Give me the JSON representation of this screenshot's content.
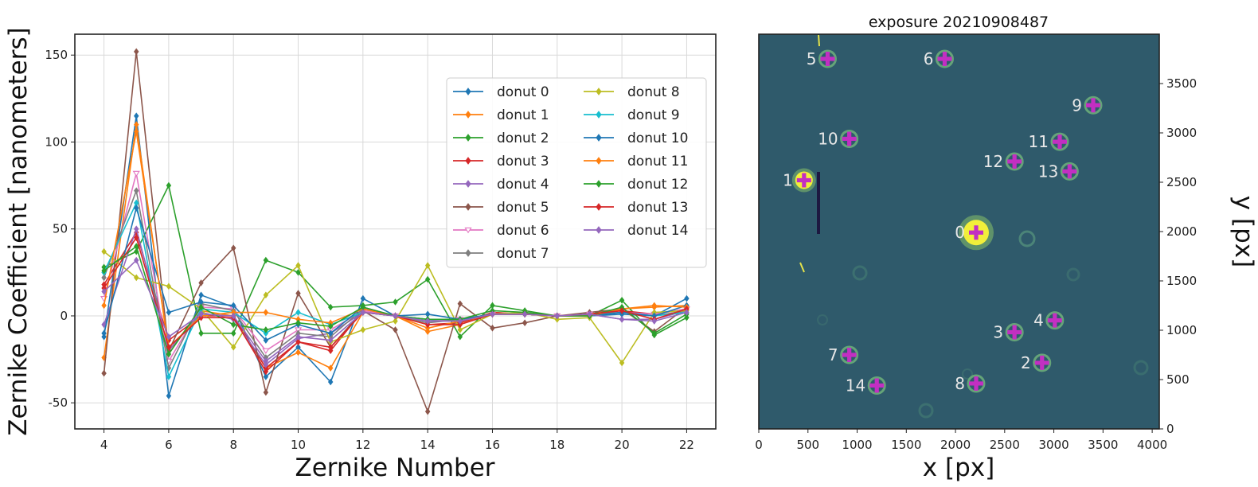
{
  "chart_data": [
    {
      "type": "line",
      "title": "",
      "xlabel": "Zernike Number",
      "ylabel": "Zernike Coefficient [nanometers]",
      "xlim": [
        3.1,
        22.9
      ],
      "ylim": [
        -65,
        162
      ],
      "xticks": [
        4,
        6,
        8,
        10,
        12,
        14,
        16,
        18,
        20,
        22
      ],
      "yticks": [
        -50,
        0,
        50,
        100,
        150
      ],
      "grid": true,
      "legend_position": "upper-right, 2 columns",
      "x": [
        4,
        5,
        6,
        7,
        8,
        9,
        10,
        11,
        12,
        13,
        14,
        15,
        16,
        17,
        18,
        19,
        20,
        21,
        22
      ],
      "series": [
        {
          "name": "donut 0",
          "color": "#1f77b4",
          "marker": "diamond",
          "values": [
            -12,
            115,
            -46,
            12,
            5,
            -35,
            -18,
            -38,
            10,
            0,
            -2,
            -3,
            1,
            1,
            0,
            0,
            1,
            0,
            10
          ]
        },
        {
          "name": "donut 1",
          "color": "#ff7f0e",
          "marker": "diamond",
          "values": [
            -24,
            110,
            -20,
            3,
            0,
            -30,
            -21,
            -30,
            2,
            0,
            -9,
            -5,
            2,
            1,
            0,
            1,
            4,
            5,
            6
          ]
        },
        {
          "name": "donut 2",
          "color": "#2ca02c",
          "marker": "diamond",
          "values": [
            28,
            37,
            75,
            -10,
            -10,
            32,
            25,
            5,
            6,
            8,
            21,
            -12,
            6,
            3,
            0,
            0,
            9,
            -11,
            -1
          ]
        },
        {
          "name": "donut 3",
          "color": "#d62728",
          "marker": "diamond",
          "values": [
            18,
            48,
            -14,
            0,
            0,
            -30,
            -15,
            -20,
            3,
            0,
            -5,
            -4,
            2,
            1,
            0,
            1,
            3,
            1,
            4
          ]
        },
        {
          "name": "donut 4",
          "color": "#9467bd",
          "marker": "diamond",
          "values": [
            -5,
            50,
            -20,
            2,
            -2,
            -28,
            -13,
            -10,
            2,
            0,
            -3,
            -3,
            1,
            1,
            0,
            1,
            -2,
            -2,
            3
          ]
        },
        {
          "name": "donut 5",
          "color": "#8c564b",
          "marker": "diamond",
          "values": [
            -33,
            152,
            -20,
            19,
            39,
            -44,
            13,
            -18,
            3,
            -8,
            -55,
            7,
            -7,
            -4,
            0,
            2,
            4,
            -9,
            5
          ]
        },
        {
          "name": "donut 6",
          "color": "#e377c2",
          "marker": "tri_down",
          "values": [
            10,
            82,
            -26,
            5,
            4,
            -20,
            -8,
            -8,
            3,
            0,
            -3,
            -2,
            1,
            1,
            0,
            1,
            2,
            1,
            4
          ]
        },
        {
          "name": "donut 7",
          "color": "#7f7f7f",
          "marker": "diamond",
          "values": [
            22,
            72,
            -30,
            7,
            3,
            -24,
            -10,
            -12,
            4,
            0,
            -4,
            -2,
            1,
            1,
            0,
            1,
            2,
            0,
            3
          ]
        },
        {
          "name": "donut 8",
          "color": "#bcbd22",
          "marker": "diamond",
          "values": [
            37,
            22,
            17,
            4,
            -18,
            12,
            29,
            -15,
            -8,
            -3,
            29,
            -8,
            1,
            2,
            -2,
            -1,
            -27,
            2,
            3
          ]
        },
        {
          "name": "donut 9",
          "color": "#17becf",
          "marker": "diamond",
          "values": [
            25,
            65,
            -35,
            4,
            2,
            -10,
            2,
            -5,
            2,
            0,
            -2,
            -2,
            1,
            1,
            0,
            0,
            2,
            0,
            2
          ]
        },
        {
          "name": "donut 10",
          "color": "#1f77b4",
          "marker": "diamond",
          "values": [
            -10,
            62,
            2,
            8,
            6,
            -14,
            -5,
            -10,
            5,
            0,
            1,
            -2,
            1,
            1,
            0,
            0,
            2,
            0,
            6
          ]
        },
        {
          "name": "donut 11",
          "color": "#ff7f0e",
          "marker": "diamond",
          "values": [
            6,
            106,
            -18,
            0,
            2,
            2,
            -2,
            -4,
            4,
            0,
            -7,
            -3,
            1,
            1,
            0,
            0,
            4,
            6,
            5
          ]
        },
        {
          "name": "donut 12",
          "color": "#2ca02c",
          "marker": "diamond",
          "values": [
            26,
            40,
            -22,
            5,
            -5,
            -8,
            -4,
            -6,
            5,
            0,
            -2,
            -2,
            3,
            2,
            0,
            0,
            5,
            -10,
            1
          ]
        },
        {
          "name": "donut 13",
          "color": "#d62728",
          "marker": "diamond",
          "values": [
            16,
            45,
            -18,
            -1,
            -1,
            -32,
            -15,
            -18,
            2,
            0,
            -5,
            -5,
            1,
            1,
            0,
            1,
            3,
            -2,
            4
          ]
        },
        {
          "name": "donut 14",
          "color": "#9467bd",
          "marker": "diamond",
          "values": [
            14,
            32,
            -12,
            1,
            0,
            -26,
            -12,
            -14,
            2,
            0,
            -3,
            -3,
            1,
            1,
            0,
            1,
            -2,
            -3,
            2
          ]
        }
      ]
    },
    {
      "type": "image",
      "title": "exposure 20210908487",
      "xlabel": "x [px]",
      "ylabel": "y [px]",
      "xlim": [
        0,
        4072
      ],
      "ylim": [
        0,
        4000
      ],
      "xticks": [
        0,
        500,
        1000,
        1500,
        2000,
        2500,
        3000,
        3500,
        4000
      ],
      "yticks": [
        0,
        500,
        1000,
        1500,
        2000,
        2500,
        3000,
        3500
      ],
      "yaxis_side": "right",
      "background_color": "#2f5a6b",
      "marker_color": "#c22fc2",
      "label_color": "#e8e8e8",
      "donuts": [
        {
          "label": "0",
          "x": 2210,
          "y": 1990,
          "bright": true
        },
        {
          "label": "1",
          "x": 460,
          "y": 2520,
          "bright": true
        },
        {
          "label": "2",
          "x": 2880,
          "y": 670,
          "bright": false
        },
        {
          "label": "3",
          "x": 2600,
          "y": 980,
          "bright": false
        },
        {
          "label": "4",
          "x": 3010,
          "y": 1100,
          "bright": false
        },
        {
          "label": "5",
          "x": 700,
          "y": 3750,
          "bright": false
        },
        {
          "label": "6",
          "x": 1890,
          "y": 3750,
          "bright": false
        },
        {
          "label": "7",
          "x": 920,
          "y": 750,
          "bright": false
        },
        {
          "label": "8",
          "x": 2210,
          "y": 460,
          "bright": false
        },
        {
          "label": "9",
          "x": 3400,
          "y": 3280,
          "bright": false
        },
        {
          "label": "10",
          "x": 920,
          "y": 2940,
          "bright": false
        },
        {
          "label": "11",
          "x": 3060,
          "y": 2910,
          "bright": false
        },
        {
          "label": "12",
          "x": 2600,
          "y": 2710,
          "bright": false
        },
        {
          "label": "13",
          "x": 3160,
          "y": 2610,
          "bright": false
        },
        {
          "label": "14",
          "x": 1200,
          "y": 440,
          "bright": false
        }
      ]
    }
  ]
}
